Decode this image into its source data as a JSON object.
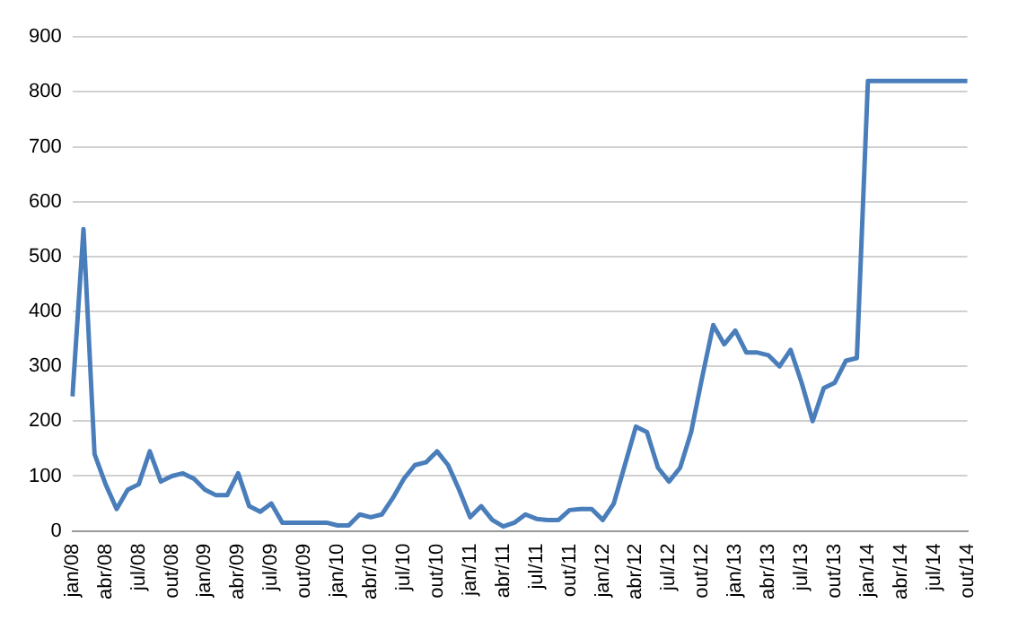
{
  "chart_data": {
    "type": "line",
    "categories": [
      "jan/08",
      null,
      null,
      "abr/08",
      null,
      null,
      "jul/08",
      null,
      null,
      "out/08",
      null,
      null,
      "jan/09",
      null,
      null,
      "abr/09",
      null,
      null,
      "jul/09",
      null,
      null,
      "out/09",
      null,
      null,
      "jan/10",
      null,
      null,
      "abr/10",
      null,
      null,
      "jul/10",
      null,
      null,
      "out/10",
      null,
      null,
      "jan/11",
      null,
      null,
      "abr/11",
      null,
      null,
      "jul/11",
      null,
      null,
      "out/11",
      null,
      null,
      "jan/12",
      null,
      null,
      "abr/12",
      null,
      null,
      "jul/12",
      null,
      null,
      "out/12",
      null,
      null,
      "jan/13",
      null,
      null,
      "abr/13",
      null,
      null,
      "jul/13",
      null,
      null,
      "out/13",
      null,
      null,
      "jan/14",
      null,
      null,
      "abr/14",
      null,
      null,
      "jul/14",
      null,
      null,
      "out/14"
    ],
    "series": [
      {
        "color": "#4a7ebb",
        "values": [
          245,
          550,
          140,
          85,
          40,
          75,
          85,
          145,
          90,
          100,
          105,
          95,
          75,
          65,
          65,
          105,
          45,
          35,
          50,
          15,
          15,
          15,
          15,
          15,
          10,
          10,
          30,
          25,
          30,
          60,
          95,
          120,
          125,
          145,
          120,
          75,
          25,
          45,
          20,
          8,
          15,
          30,
          22,
          20,
          20,
          38,
          40,
          40,
          20,
          50,
          120,
          190,
          180,
          115,
          90,
          115,
          180,
          280,
          375,
          340,
          365,
          325,
          325,
          320,
          300,
          330,
          270,
          200,
          260,
          270,
          310,
          315,
          820,
          820,
          820,
          820,
          820,
          820,
          820,
          820,
          820,
          820
        ]
      }
    ],
    "ylim": [
      0,
      900
    ],
    "yticks": [
      0,
      100,
      200,
      300,
      400,
      500,
      600,
      700,
      800,
      900
    ],
    "grid": "y",
    "legend": false,
    "marker": "none",
    "line_style": "solid"
  }
}
